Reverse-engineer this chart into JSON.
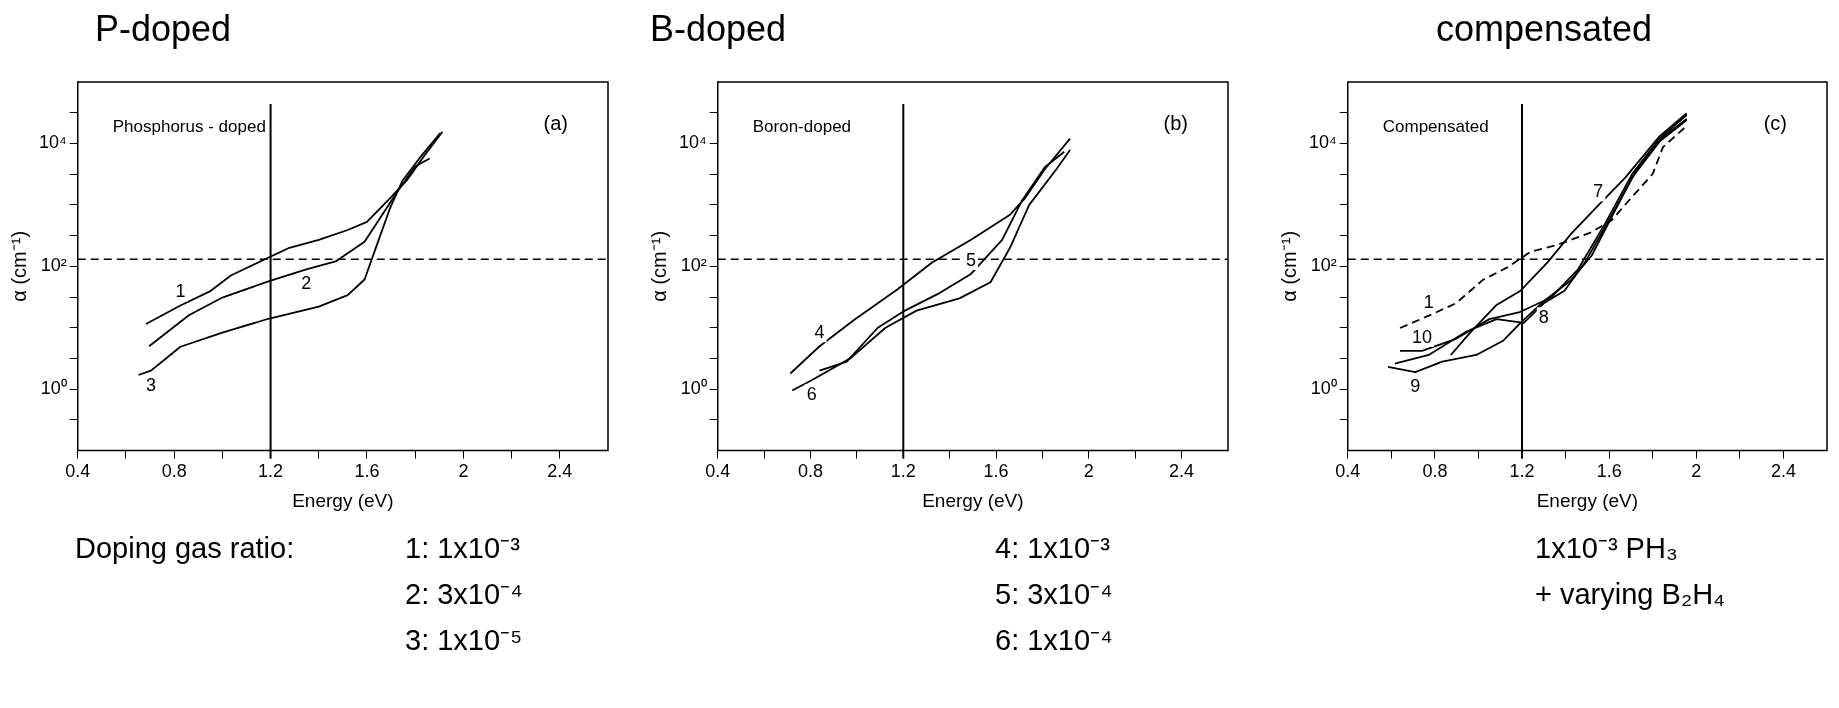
{
  "chart_data": [
    {
      "type": "line",
      "title": "P-doped",
      "xlabel": "Energy (eV)",
      "ylabel": "α (cm⁻¹)",
      "legend_title": "Doping gas ratio:",
      "annotations": [
        "Phosphorus - doped",
        "(a)",
        "1: 1x10⁻³",
        "2: 3x10⁻⁴",
        "3: 1x10⁻⁵"
      ],
      "log": "y",
      "legend": false,
      "marker": "none",
      "xlim": [
        0.4,
        2.6
      ],
      "xticks": [
        0.4,
        {
          "value": 0.6,
          "label": null
        },
        0.8,
        {
          "value": 1.0,
          "label": null
        },
        1.2,
        {
          "value": 1.4,
          "label": null
        },
        1.6,
        {
          "value": 1.8,
          "label": null
        },
        2,
        {
          "value": 2.2,
          "label": null
        },
        2.4
      ],
      "ylim": [
        0.1,
        100000
      ],
      "yticks": [
        {
          "value": 0.316,
          "label": null
        },
        {
          "value": 1,
          "label": "10⁰"
        },
        {
          "value": 3.16,
          "label": null
        },
        {
          "value": 10,
          "label": null
        },
        {
          "value": 31.6,
          "label": null
        },
        {
          "value": 100,
          "label": "10²"
        },
        {
          "value": 316,
          "label": null
        },
        {
          "value": 1000,
          "label": null
        },
        {
          "value": 3160,
          "label": null
        },
        {
          "value": 10000,
          "label": "10⁴"
        },
        {
          "value": 31600,
          "label": null
        }
      ],
      "ref_lines": [
        {
          "axis": "y",
          "value": 130,
          "line_style": "dashed"
        },
        {
          "axis": "x",
          "value": 1.2,
          "line_style": "solid"
        }
      ],
      "series": [
        {
          "name": "1",
          "color": "#000000",
          "x": [
            0.683,
            0.826,
            0.948,
            1.035,
            1.174,
            1.278,
            1.4,
            1.52,
            1.6,
            1.696,
            1.765,
            1.835,
            1.913
          ],
          "values": [
            11.5,
            23,
            39,
            71,
            129,
            200,
            270,
            390,
            530,
            1290,
            2500,
            6100,
            15500
          ]
        },
        {
          "name": "2",
          "color": "#000000",
          "x": [
            0.696,
            0.861,
            1.0,
            1.191,
            1.348,
            1.47,
            1.59,
            1.66,
            1.73,
            1.8,
            1.86
          ],
          "values": [
            5.0,
            16,
            31,
            57,
            89,
            120,
            250,
            660,
            1730,
            4200,
            5700
          ]
        },
        {
          "name": "3",
          "color": "#000000",
          "x": [
            0.652,
            0.704,
            0.826,
            1.0,
            1.191,
            1.4,
            1.52,
            1.59,
            1.643,
            1.696,
            1.748,
            1.817,
            1.904
          ],
          "values": [
            1.7,
            2.0,
            4.9,
            8.3,
            14,
            22,
            34,
            61,
            234,
            890,
            2500,
            5700,
            14800
          ]
        }
      ]
    },
    {
      "type": "line",
      "title": "B-doped",
      "xlabel": "Energy (eV)",
      "ylabel": "α (cm⁻¹)",
      "annotations": [
        "Boron-doped",
        "(b)",
        "4: 1x10⁻³",
        "5: 3x10⁻⁴",
        "6: 1x10⁻⁴"
      ],
      "log": "y",
      "legend": false,
      "marker": "none",
      "xlim": [
        0.4,
        2.6
      ],
      "xticks": [
        0.4,
        {
          "value": 0.6,
          "label": null
        },
        0.8,
        {
          "value": 1.0,
          "label": null
        },
        1.2,
        {
          "value": 1.4,
          "label": null
        },
        1.6,
        {
          "value": 1.8,
          "label": null
        },
        2,
        {
          "value": 2.2,
          "label": null
        },
        2.4
      ],
      "ylim": [
        0.1,
        100000
      ],
      "yticks": [
        {
          "value": 0.316,
          "label": null
        },
        {
          "value": 1,
          "label": "10⁰"
        },
        {
          "value": 3.16,
          "label": null
        },
        {
          "value": 10,
          "label": null
        },
        {
          "value": 31.6,
          "label": null
        },
        {
          "value": 100,
          "label": "10²"
        },
        {
          "value": 316,
          "label": null
        },
        {
          "value": 1000,
          "label": null
        },
        {
          "value": 3160,
          "label": null
        },
        {
          "value": 10000,
          "label": "10⁴"
        },
        {
          "value": 31600,
          "label": null
        }
      ],
      "ref_lines": [
        {
          "axis": "y",
          "value": 130,
          "line_style": "dashed"
        },
        {
          "axis": "x",
          "value": 1.2,
          "line_style": "solid"
        }
      ],
      "series": [
        {
          "name": "4",
          "color": "#000000",
          "x": [
            0.713,
            0.839,
            0.989,
            1.174,
            1.324,
            1.492,
            1.66,
            1.726,
            1.81,
            1.919
          ],
          "values": [
            1.8,
            5.0,
            13.5,
            42,
            115,
            270,
            690,
            1300,
            3800,
            12000
          ]
        },
        {
          "name": "5",
          "color": "#000000",
          "x": [
            0.839,
            0.956,
            1.09,
            1.207,
            1.358,
            1.492,
            1.626,
            1.71,
            1.81,
            1.894
          ],
          "values": [
            2.0,
            2.8,
            10,
            19,
            37,
            75,
            270,
            1140,
            4100,
            7300
          ]
        },
        {
          "name": "6",
          "color": "#000000",
          "x": [
            0.721,
            0.805,
            0.973,
            1.123,
            1.257,
            1.442,
            1.576,
            1.66,
            1.743,
            1.86,
            1.919
          ],
          "values": [
            0.95,
            1.4,
            3.2,
            10,
            19,
            30,
            55,
            200,
            1000,
            3800,
            7800
          ]
        }
      ]
    },
    {
      "type": "line",
      "title": "compensated",
      "xlabel": "Energy (eV)",
      "ylabel": "α (cm⁻¹)",
      "annotations": [
        "Compensated",
        "(c)",
        "1x10⁻³ PH₃",
        "+ varying B₂H₄"
      ],
      "log": "y",
      "legend": false,
      "marker": "none",
      "xlim": [
        0.4,
        2.6
      ],
      "xticks": [
        0.4,
        {
          "value": 0.6,
          "label": null
        },
        0.8,
        {
          "value": 1.0,
          "label": null
        },
        1.2,
        {
          "value": 1.4,
          "label": null
        },
        1.6,
        {
          "value": 1.8,
          "label": null
        },
        2,
        {
          "value": 2.2,
          "label": null
        },
        2.4
      ],
      "ylim": [
        0.1,
        100000
      ],
      "yticks": [
        {
          "value": 0.316,
          "label": null
        },
        {
          "value": 1,
          "label": "10⁰"
        },
        {
          "value": 3.16,
          "label": null
        },
        {
          "value": 10,
          "label": null
        },
        {
          "value": 31.6,
          "label": null
        },
        {
          "value": 100,
          "label": "10²"
        },
        {
          "value": 316,
          "label": null
        },
        {
          "value": 1000,
          "label": null
        },
        {
          "value": 3160,
          "label": null
        },
        {
          "value": 10000,
          "label": "10⁴"
        },
        {
          "value": 31600,
          "label": null
        }
      ],
      "ref_lines": [
        {
          "axis": "y",
          "value": 130,
          "line_style": "dashed"
        },
        {
          "axis": "x",
          "value": 1.2,
          "line_style": "solid"
        }
      ],
      "series": [
        {
          "name": "1",
          "color": "#000000",
          "line_style": "dashed",
          "x": [
            0.64,
            0.772,
            0.897,
            1.02,
            1.13,
            1.24,
            1.364,
            1.52,
            1.613,
            1.706,
            1.8,
            1.847,
            1.956
          ],
          "values": [
            9.9,
            15.7,
            25,
            60,
            95,
            173,
            225,
            360,
            570,
            1360,
            3200,
            8700,
            19400
          ]
        },
        {
          "name": "7",
          "color": "#000000",
          "x": [
            0.873,
            0.959,
            1.083,
            1.193,
            1.317,
            1.426,
            1.55,
            1.675,
            1.831,
            1.956
          ],
          "values": [
            3.6,
            8.1,
            23.5,
            40,
            116,
            340,
            980,
            2800,
            13000,
            31000
          ]
        },
        {
          "name": "8",
          "color": "#000000",
          "x": [
            0.616,
            0.772,
            0.943,
            1.083,
            1.208,
            1.3,
            1.395,
            1.489,
            1.6,
            1.722,
            1.831,
            1.956
          ],
          "values": [
            2.6,
            3.6,
            8.6,
            13.8,
            12,
            25,
            40,
            116,
            570,
            3500,
            11500,
            25000
          ]
        },
        {
          "name": "9",
          "color": "#000000",
          "x": [
            0.585,
            0.71,
            0.834,
            0.99,
            1.115,
            1.193,
            1.3,
            1.426,
            1.52,
            1.613,
            1.706,
            1.831,
            1.956
          ],
          "values": [
            2.3,
            1.9,
            2.8,
            3.6,
            6.2,
            12,
            27,
            60,
            150,
            650,
            2800,
            10700,
            24000
          ]
        },
        {
          "name": "10",
          "color": "#000000",
          "x": [
            0.64,
            0.741,
            0.897,
            1.05,
            1.19,
            1.333,
            1.457,
            1.582,
            1.706,
            1.831,
            1.956
          ],
          "values": [
            4.2,
            4.2,
            6.6,
            13.8,
            18,
            31,
            89,
            500,
            3200,
            12000,
            29000
          ]
        }
      ]
    }
  ]
}
